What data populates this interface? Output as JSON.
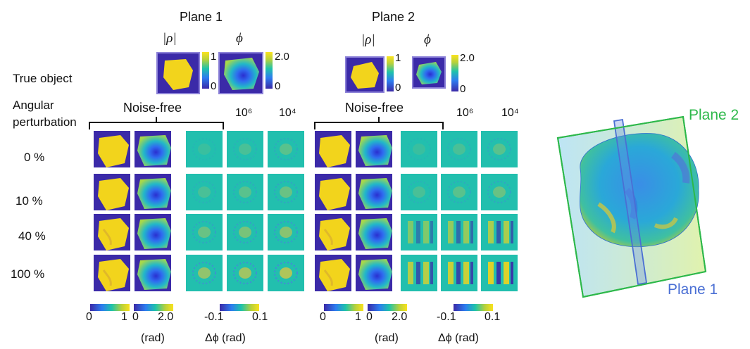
{
  "figure": {
    "plane1_title": "Plane 1",
    "plane2_title": "Plane 2",
    "true_object_label": "True object",
    "perturbation_label_line1": "Angular",
    "perturbation_label_line2": "perturbation",
    "rho_label": "|ρ|",
    "phi_label": "ϕ",
    "noise_free_label": "Noise-free",
    "noise_levels": [
      "10⁶",
      "10⁴"
    ],
    "perturbations": [
      "0 %",
      "10 %",
      "40 %",
      "100 %"
    ],
    "colorbars": {
      "rho_ticks": [
        "0",
        "1"
      ],
      "phi_ticks": [
        "0",
        "2.0"
      ],
      "inset_rho_ticks": [
        "1",
        "0"
      ],
      "inset_phi_ticks": [
        "2.0",
        "0"
      ],
      "delta_ticks": [
        "-0.1",
        "0.1"
      ],
      "rad_label": "(rad)",
      "delta_label": "Δϕ (rad)"
    },
    "model_3d": {
      "plane2_label": "Plane 2",
      "plane1_label": "Plane 1"
    },
    "colors": {
      "plane2": "#2db84a",
      "plane1": "#4a6fd4",
      "tile_background": "#3b2aa8",
      "object_yellow": "#f2d41c",
      "diff_background": "#22bfae"
    }
  }
}
